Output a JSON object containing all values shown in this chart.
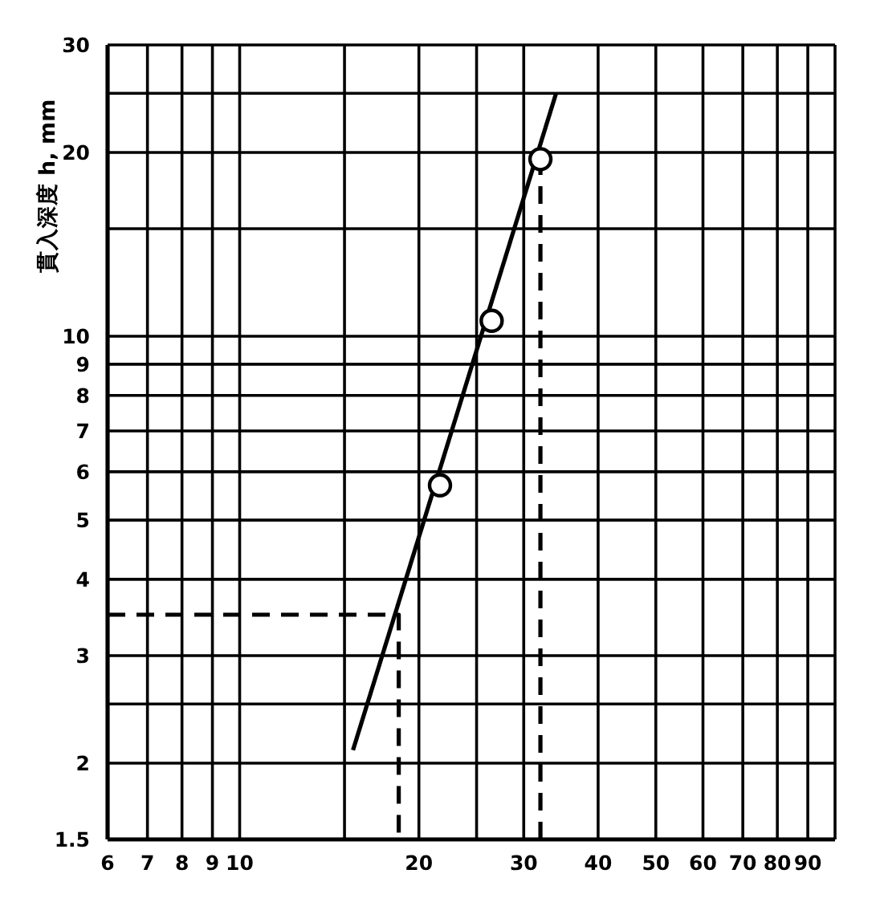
{
  "chart_data": {
    "type": "scatter",
    "ylabel": "貫入深度 h, mm",
    "xlim": [
      6,
      100
    ],
    "xticks": [
      6,
      7,
      8,
      9,
      10,
      {
        "value": 15,
        "label": null
      },
      20,
      {
        "value": 25,
        "label": null
      },
      30,
      40,
      50,
      60,
      70,
      80,
      90
    ],
    "ylim": [
      1.5,
      30
    ],
    "yticks": [
      1.5,
      2,
      {
        "value": 2.5,
        "label": null
      },
      3,
      4,
      5,
      6,
      7,
      8,
      9,
      10,
      {
        "value": 15,
        "label": null
      },
      20,
      {
        "value": 25,
        "label": null
      },
      30
    ],
    "log": "xy",
    "grid": true,
    "series": [
      {
        "type": "line",
        "color": "#000000",
        "x": [
          15.5,
          34
        ],
        "values": [
          2.1,
          25
        ],
        "line_style": "solid",
        "marker": "none"
      },
      {
        "type": "line",
        "color": "#000000",
        "x": [
          6,
          18.5,
          18.5
        ],
        "values": [
          3.5,
          3.5,
          1.5
        ],
        "line_style": "dashed",
        "marker": "none"
      },
      {
        "type": "line",
        "color": "#000000",
        "x": [
          32,
          32
        ],
        "values": [
          1.5,
          19.5
        ],
        "line_style": "dashed",
        "marker": "none"
      },
      {
        "color": "#000000",
        "x": [
          21.7,
          26.5,
          32
        ],
        "values": [
          5.7,
          10.6,
          19.5
        ],
        "marker": "circle"
      }
    ]
  }
}
